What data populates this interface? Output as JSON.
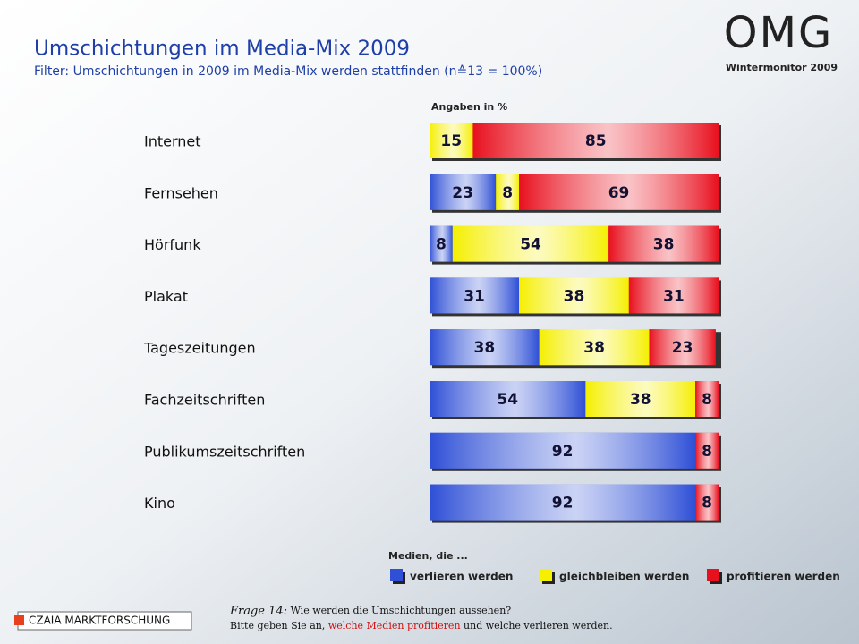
{
  "chart_data": {
    "type": "stacked-bar-horizontal",
    "title": "Umschichtungen im Media-Mix 2009",
    "subtitle": "Filter: Umschichtungen in 2009 im Media-Mix werden stattfinden (n≙13 = 100%)",
    "logo": "OMG",
    "brand": "Wintermonitor  2009",
    "unit_note": "Angaben in %",
    "legend_title": "Medien, die ...",
    "company": "CZAIA MARKTFORSCHUNG",
    "question": {
      "label": "Frage 14:",
      "line1": "Wie werden die Umschichtungen aussehen?",
      "line2a": "Bitte geben Sie an,",
      "line2b": "welche Medien profitieren",
      "line2c": "und welche verlieren werden."
    },
    "categories": [
      "Internet",
      "Fernsehen",
      "Hörfunk",
      "Plakat",
      "Tageszeitungen",
      "Fachzeitschriften",
      "Publikumszeitschriften",
      "Kino"
    ],
    "xlim": [
      0,
      100
    ],
    "series": [
      {
        "name": "verlieren werden",
        "color": "#2e4fd6",
        "values": [
          null,
          23,
          8,
          31,
          38,
          54,
          92,
          92
        ]
      },
      {
        "name": "gleichbleiben werden",
        "color": "#f5ef00",
        "values": [
          15,
          8,
          54,
          38,
          38,
          38,
          null,
          null
        ]
      },
      {
        "name": "profitieren werden",
        "color": "#e8101e",
        "values": [
          85,
          69,
          38,
          31,
          23,
          8,
          8,
          8
        ]
      }
    ]
  }
}
